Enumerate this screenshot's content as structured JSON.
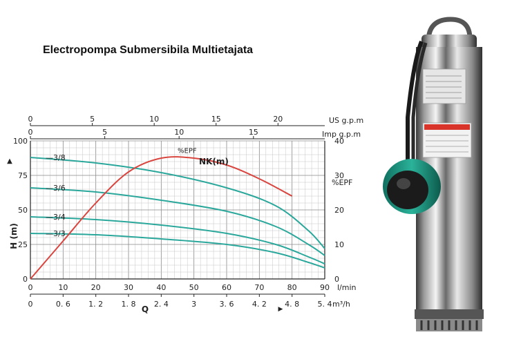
{
  "title": "Electropompa Submersibila Multietajata",
  "chart_data": {
    "type": "line",
    "x_lmin": {
      "label": "l/min",
      "ticks": [
        0,
        10,
        20,
        30,
        40,
        50,
        60,
        70,
        80,
        90
      ],
      "range": [
        0,
        90
      ]
    },
    "x_us": {
      "label": "US g.p.m",
      "ticks": [
        "0",
        "5",
        "10",
        "15",
        "20"
      ],
      "values": [
        0,
        5,
        10,
        15,
        20
      ]
    },
    "x_imp": {
      "label": "Imp g.p.m",
      "ticks": [
        "0",
        "5",
        "10",
        "15"
      ],
      "values": [
        0,
        5,
        10,
        15
      ]
    },
    "x_m3h": {
      "label": "m³/h",
      "ticks": [
        "0",
        "0. 6",
        "1. 2",
        "1. 8",
        "2. 4",
        "3",
        "3. 6",
        "4. 2",
        "4. 8",
        "5. 4"
      ],
      "values": [
        0,
        0.6,
        1.2,
        1.8,
        2.4,
        3,
        3.6,
        4.2,
        4.8,
        5.4
      ]
    },
    "q_label": "Q",
    "y_left": {
      "label": "H (m)",
      "ticks": [
        0,
        25,
        50,
        75,
        100
      ],
      "range": [
        0,
        100
      ]
    },
    "y_right": {
      "label": "%EPF",
      "ticks": [
        0,
        10,
        20,
        30,
        40
      ],
      "range": [
        0,
        40
      ]
    },
    "curves_title": "NK(m)",
    "series": [
      {
        "name": "3/8",
        "axis": "left",
        "x": [
          0,
          20,
          40,
          60,
          75,
          85,
          90
        ],
        "y": [
          88,
          84,
          77,
          66,
          53,
          35,
          22
        ]
      },
      {
        "name": "3/6",
        "axis": "left",
        "x": [
          0,
          20,
          40,
          60,
          75,
          85,
          90
        ],
        "y": [
          66,
          63,
          57,
          49,
          38,
          25,
          17
        ]
      },
      {
        "name": "3/4",
        "axis": "left",
        "x": [
          0,
          20,
          40,
          60,
          75,
          85,
          90
        ],
        "y": [
          45,
          43,
          39,
          33,
          25,
          16,
          11
        ]
      },
      {
        "name": "3/3",
        "axis": "left",
        "x": [
          0,
          20,
          40,
          60,
          75,
          85,
          90
        ],
        "y": [
          33,
          32,
          29,
          25,
          19,
          12,
          8
        ]
      },
      {
        "name": "%EPF",
        "axis": "right",
        "x": [
          0,
          10,
          20,
          30,
          40,
          50,
          60,
          70,
          80
        ],
        "y": [
          0,
          11,
          22,
          31,
          35,
          35,
          33,
          29,
          24
        ]
      }
    ],
    "grid": true
  }
}
